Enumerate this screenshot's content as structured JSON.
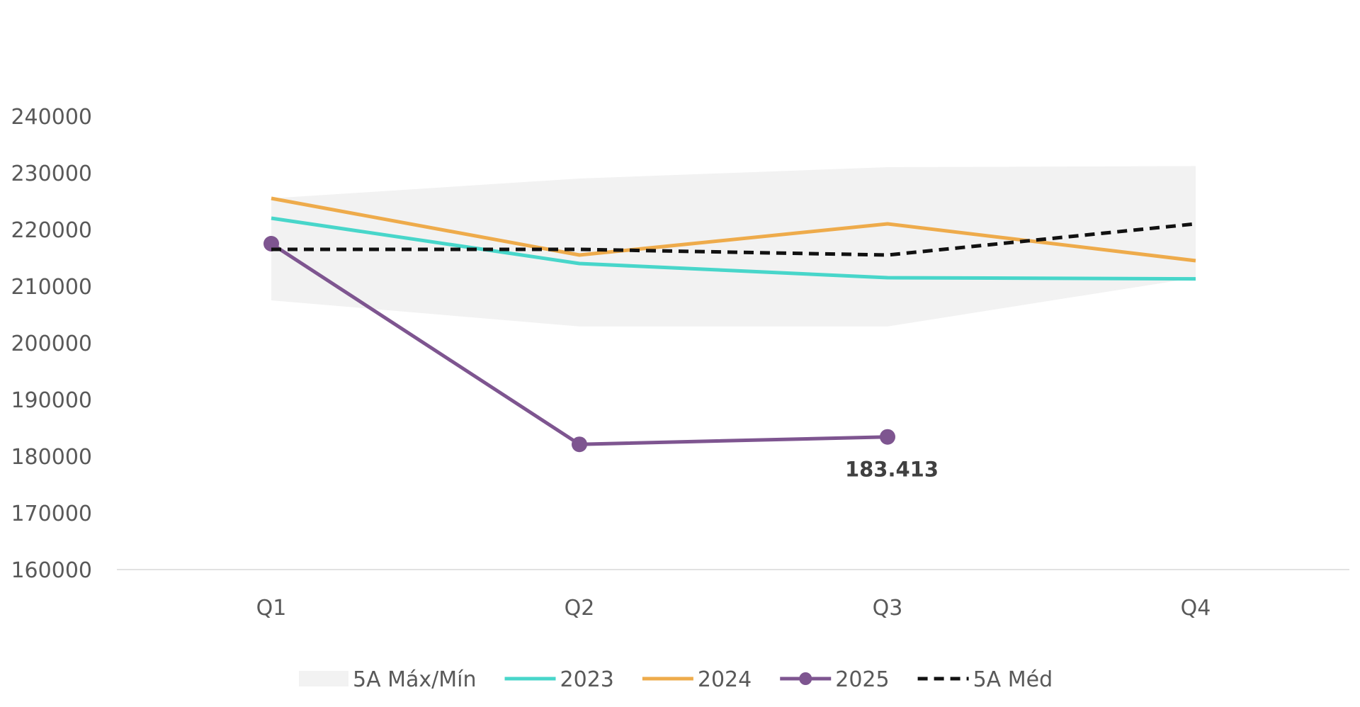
{
  "chart_data": {
    "type": "line",
    "categories": [
      "Q1",
      "Q2",
      "Q3",
      "Q4"
    ],
    "ylim": [
      160000,
      240000
    ],
    "yticks": [
      160000,
      170000,
      180000,
      190000,
      200000,
      210000,
      220000,
      230000,
      240000
    ],
    "band": {
      "name": "5A Máx/Mín",
      "color": "#f2f2f2",
      "min": [
        207500,
        202900,
        202900,
        211500
      ],
      "max": [
        225500,
        229000,
        231000,
        231200
      ]
    },
    "series": [
      {
        "name": "2023",
        "color": "#48d6ca",
        "values": [
          222000,
          214000,
          211500,
          211300
        ],
        "style": "solid",
        "markers": false
      },
      {
        "name": "2024",
        "color": "#eeab4b",
        "values": [
          225500,
          215500,
          221000,
          214500
        ],
        "style": "solid",
        "markers": false
      },
      {
        "name": "2025",
        "color": "#7e5590",
        "values": [
          217500,
          182100,
          183413,
          null
        ],
        "style": "solid",
        "markers": true
      },
      {
        "name": "5A Méd",
        "color": "#111111",
        "values": [
          216500,
          216500,
          215500,
          221000
        ],
        "style": "dashed",
        "markers": false
      }
    ],
    "data_labels": [
      {
        "series": "2025",
        "category": "Q3",
        "text": "183.413"
      }
    ],
    "legend_position": "bottom",
    "grid": false,
    "title": "",
    "xlabel": "",
    "ylabel": ""
  }
}
